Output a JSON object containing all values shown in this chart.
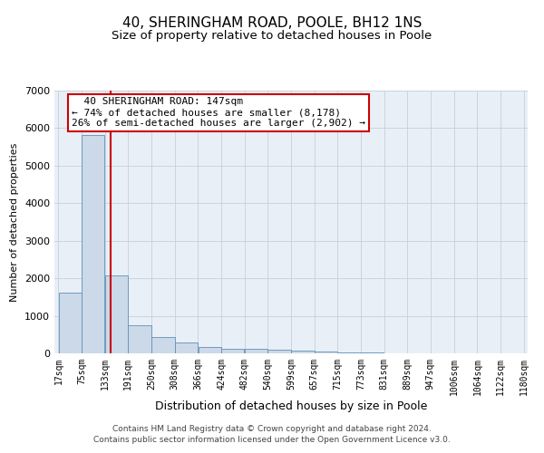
{
  "title1": "40, SHERINGHAM ROAD, POOLE, BH12 1NS",
  "title2": "Size of property relative to detached houses in Poole",
  "xlabel": "Distribution of detached houses by size in Poole",
  "ylabel": "Number of detached properties",
  "footer1": "Contains HM Land Registry data © Crown copyright and database right 2024.",
  "footer2": "Contains public sector information licensed under the Open Government Licence v3.0.",
  "annotation_line1": "  40 SHERINGHAM ROAD: 147sqm",
  "annotation_line2": "← 74% of detached houses are smaller (8,178)",
  "annotation_line3": "26% of semi-detached houses are larger (2,902) →",
  "bar_left_edges": [
    17,
    75,
    133,
    191,
    250,
    308,
    366,
    424,
    482,
    540,
    599,
    657,
    715,
    773,
    831,
    889,
    947,
    1006,
    1064,
    1122
  ],
  "bar_widths": [
    58,
    58,
    58,
    59,
    58,
    58,
    58,
    58,
    58,
    59,
    58,
    58,
    58,
    58,
    58,
    58,
    59,
    58,
    58,
    58
  ],
  "bar_heights": [
    1620,
    5820,
    2080,
    750,
    430,
    300,
    175,
    130,
    110,
    85,
    65,
    45,
    25,
    15,
    10,
    6,
    5,
    3,
    2,
    1
  ],
  "tick_labels": [
    "17sqm",
    "75sqm",
    "133sqm",
    "191sqm",
    "250sqm",
    "308sqm",
    "366sqm",
    "424sqm",
    "482sqm",
    "540sqm",
    "599sqm",
    "657sqm",
    "715sqm",
    "773sqm",
    "831sqm",
    "889sqm",
    "947sqm",
    "1006sqm",
    "1064sqm",
    "1122sqm",
    "1180sqm"
  ],
  "bar_color": "#ccd9e8",
  "bar_edge_color": "#6090b8",
  "highlight_color": "#cc0000",
  "annotation_box_color": "#cc0000",
  "ylim": [
    0,
    7000
  ],
  "background_color": "#ffffff",
  "plot_bg_color": "#e8eff7",
  "grid_color": "#c5d0de",
  "title1_fontsize": 11,
  "title2_fontsize": 9.5,
  "ylabel_fontsize": 8,
  "xlabel_fontsize": 9,
  "tick_fontsize": 7,
  "annotation_fontsize": 8,
  "footer_fontsize": 6.5
}
